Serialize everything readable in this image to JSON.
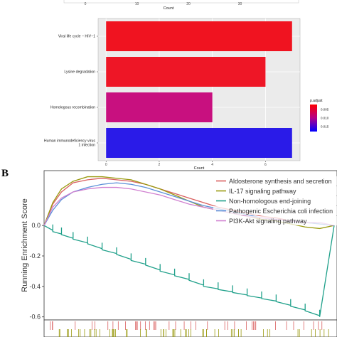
{
  "panel_b": {
    "label": "B"
  },
  "chart_data": [
    {
      "type": "bar",
      "panel": "A (top, partially cropped)",
      "orientation": "horizontal",
      "xlabel": "Count",
      "xticks": [
        "0",
        "10",
        "20",
        "30"
      ],
      "xlim": [
        0,
        40
      ]
    },
    {
      "type": "bar",
      "panel": "A",
      "orientation": "horizontal",
      "categories": [
        "Viral life cycle − HIV−1",
        "Lysine degradation",
        "Homologous recombination",
        "Human immunodeficiency virus 1 infection"
      ],
      "category_lines": [
        [
          "Viral life cycle − HIV−1"
        ],
        [
          "Lysine degradation"
        ],
        [
          "Homologous recombination"
        ],
        [
          "Human immunodeficiency virus",
          "1 infection"
        ]
      ],
      "values": [
        7,
        6,
        4,
        7
      ],
      "p_adjust": [
        0.001,
        0.002,
        0.009,
        0.016
      ],
      "bar_colors": [
        "#f01320",
        "#ee1626",
        "#c8107f",
        "#2a1be8"
      ],
      "xlabel": "Count",
      "xticks": [
        "0",
        "2",
        "4",
        "6"
      ],
      "xlim": [
        -0.3,
        7.3
      ],
      "legend": {
        "title": "p.adjust",
        "labels": [
          "0.005",
          "0.010",
          "0.015"
        ],
        "colors": [
          "#ff0000",
          "#b3008a",
          "#0000ff"
        ]
      }
    },
    {
      "type": "line",
      "panel": "B",
      "ylabel": "Running Enrichment Score",
      "yticks": [
        "0.0",
        "-0.2",
        "-0.4",
        "-0.6"
      ],
      "ylim": [
        -0.62,
        0.36
      ],
      "x": [
        0,
        0.03,
        0.06,
        0.1,
        0.15,
        0.2,
        0.25,
        0.3,
        0.35,
        0.4,
        0.45,
        0.5,
        0.55,
        0.6,
        0.65,
        0.7,
        0.75,
        0.8,
        0.85,
        0.9,
        0.95,
        1.0
      ],
      "series": [
        {
          "name": "Aldosterone synthesis and secretion",
          "color": "#d95f5f",
          "values": [
            0,
            0.14,
            0.22,
            0.28,
            0.3,
            0.31,
            0.3,
            0.29,
            0.27,
            0.24,
            0.21,
            0.18,
            0.15,
            0.12,
            0.1,
            0.08,
            0.06,
            0.05,
            0.03,
            0.02,
            0.01,
            0
          ]
        },
        {
          "name": "IL-17 signaling pathway",
          "color": "#9a9a10",
          "values": [
            0,
            0.15,
            0.24,
            0.29,
            0.32,
            0.32,
            0.31,
            0.3,
            0.27,
            0.24,
            0.2,
            0.16,
            0.12,
            0.1,
            0.08,
            0.06,
            0.04,
            0.03,
            0.01,
            -0.01,
            -0.02,
            0
          ]
        },
        {
          "name": "Non-homologous end-joining",
          "color": "#1fa08a",
          "values": [
            0,
            -0.04,
            -0.06,
            -0.09,
            -0.12,
            -0.16,
            -0.19,
            -0.23,
            -0.26,
            -0.3,
            -0.33,
            -0.36,
            -0.4,
            -0.42,
            -0.44,
            -0.46,
            -0.48,
            -0.5,
            -0.53,
            -0.56,
            -0.6,
            0
          ]
        },
        {
          "name": "Pathogenic Escherichia coli infection",
          "color": "#5a8fd8",
          "values": [
            0,
            0.1,
            0.17,
            0.22,
            0.25,
            0.27,
            0.28,
            0.27,
            0.25,
            0.22,
            0.19,
            0.16,
            0.13,
            0.11,
            0.09,
            0.07,
            0.05,
            0.04,
            0.03,
            0.02,
            0.01,
            0
          ]
        },
        {
          "name": "PI3K-Akt signaling pathway",
          "color": "#d080d0",
          "values": [
            0,
            0.12,
            0.18,
            0.22,
            0.24,
            0.25,
            0.25,
            0.24,
            0.22,
            0.2,
            0.17,
            0.14,
            0.12,
            0.1,
            0.08,
            0.06,
            0.05,
            0.04,
            0.03,
            0.02,
            0.02,
            0
          ]
        }
      ]
    }
  ]
}
